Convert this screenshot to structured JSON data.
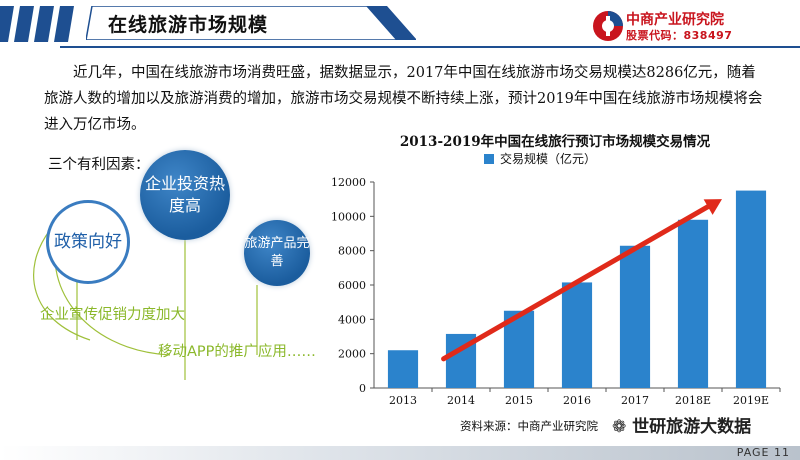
{
  "header": {
    "title": "在线旅游市场规模",
    "logo_name": "中商产业研究院",
    "logo_code": "股票代码：838497"
  },
  "intro": {
    "paragraph": "近几年，中国在线旅游市场消费旺盛，据数据显示，2017年中国在线旅游市场交易规模达8286亿元，随着旅游人数的增加以及旅游消费的增加，旅游市场交易规模不断持续上涨，预计2019年中国在线旅游市场规模将会进入万亿市场。",
    "factors_title": "三个有利因素："
  },
  "factors": {
    "policy": "政策向好",
    "investment": "企业投资热度高",
    "product": "旅游产品完善",
    "promo": "企业宣传促销力度加大",
    "mobile": "移动APP的推广应用……"
  },
  "chart_data": {
    "type": "bar",
    "title": "2013-2019年中国在线旅行预订市场规模交易情况",
    "legend": "交易规模（亿元）",
    "legend_position": "top-left",
    "categories": [
      "2013",
      "2014",
      "2015",
      "2016",
      "2017",
      "2018E",
      "2019E"
    ],
    "series": [
      {
        "name": "交易规模（亿元）",
        "values": [
          2200,
          3150,
          4500,
          6150,
          8286,
          9800,
          11500
        ]
      }
    ],
    "ylim": [
      0,
      12000
    ],
    "yticks": [
      0,
      2000,
      4000,
      6000,
      8000,
      10000,
      12000
    ],
    "grid": false,
    "bar_color": "#2b83cc",
    "trend_arrow_color": "#e02a1a"
  },
  "source": "资料来源：中商产业研究院",
  "watermark": "世研旅游大数据",
  "footer": {
    "page": "PAGE  11"
  }
}
